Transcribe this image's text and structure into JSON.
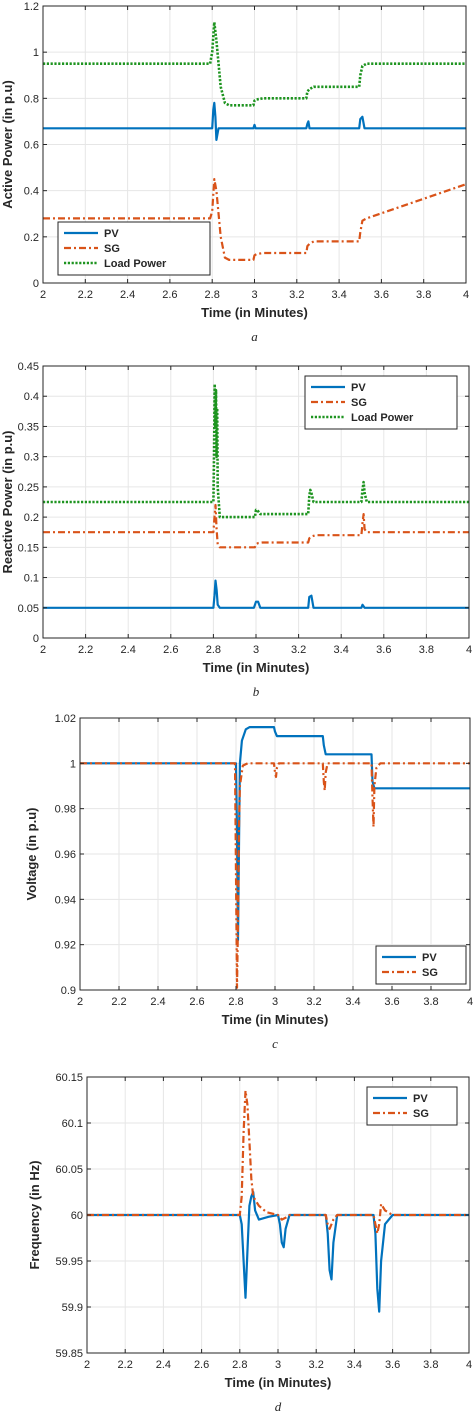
{
  "colors": {
    "pv": "#0072BD",
    "sg": "#D95319",
    "load": "#1E9420",
    "grid": "#e6e6e6",
    "axis": "#262626"
  },
  "chart_data": [
    {
      "type": "line",
      "panel_label": "a",
      "xlabel": "Time (in Minutes)",
      "ylabel": "Active Power (in p.u)",
      "xlim": [
        2,
        4
      ],
      "ylim": [
        0,
        1.2
      ],
      "xticks": [
        2,
        2.2,
        2.4,
        2.6,
        2.8,
        3,
        3.2,
        3.4,
        3.6,
        3.8,
        4
      ],
      "xtick_labels": [
        "2",
        "2.2",
        "2.4",
        "2.6",
        "2.8",
        "3",
        "3.2",
        "3.4",
        "3.6",
        "3.8",
        "4"
      ],
      "yticks": [
        0,
        0.2,
        0.4,
        0.6,
        0.8,
        1,
        1.2
      ],
      "ytick_labels": [
        "0",
        "0.2",
        "0.4",
        "0.6",
        "0.8",
        "1",
        "1.2"
      ],
      "grid": true,
      "legend_position": "bottom-left",
      "series": [
        {
          "name": "PV",
          "style": "solid",
          "color": "#0072BD",
          "x": [
            2,
            2.8,
            2.805,
            2.81,
            2.815,
            2.82,
            2.83,
            2.86,
            2.995,
            3.0,
            3.005,
            3.245,
            3.25,
            3.255,
            3.26,
            3.495,
            3.5,
            3.51,
            3.52,
            4
          ],
          "y": [
            0.67,
            0.67,
            0.75,
            0.78,
            0.72,
            0.62,
            0.67,
            0.67,
            0.67,
            0.685,
            0.67,
            0.67,
            0.69,
            0.7,
            0.67,
            0.67,
            0.71,
            0.72,
            0.67,
            0.67
          ]
        },
        {
          "name": "SG",
          "style": "dashdot",
          "color": "#D95319",
          "x": [
            2,
            2.79,
            2.8,
            2.81,
            2.82,
            2.84,
            2.86,
            2.88,
            2.995,
            3.0,
            3.01,
            3.04,
            3.245,
            3.25,
            3.26,
            3.28,
            3.495,
            3.5,
            3.51,
            3.53,
            4
          ],
          "y": [
            0.28,
            0.28,
            0.31,
            0.45,
            0.4,
            0.2,
            0.11,
            0.1,
            0.1,
            0.12,
            0.125,
            0.13,
            0.13,
            0.16,
            0.17,
            0.18,
            0.18,
            0.22,
            0.27,
            0.28,
            0.428
          ]
        },
        {
          "name": "Load Power",
          "style": "dotted",
          "color": "#1E9420",
          "x": [
            2,
            2.79,
            2.8,
            2.81,
            2.82,
            2.84,
            2.86,
            2.88,
            2.995,
            3.0,
            3.01,
            3.04,
            3.245,
            3.25,
            3.26,
            3.28,
            3.495,
            3.5,
            3.51,
            3.53,
            4
          ],
          "y": [
            0.95,
            0.95,
            1.0,
            1.13,
            1.05,
            0.85,
            0.78,
            0.77,
            0.77,
            0.79,
            0.795,
            0.8,
            0.8,
            0.83,
            0.84,
            0.85,
            0.85,
            0.9,
            0.94,
            0.95,
            0.95
          ]
        }
      ]
    },
    {
      "type": "line",
      "panel_label": "b",
      "xlabel": "Time (in Minutes)",
      "ylabel": "Reactive Power (in p.u)",
      "xlim": [
        2,
        4
      ],
      "ylim": [
        0,
        0.45
      ],
      "xticks": [
        2,
        2.2,
        2.4,
        2.6,
        2.8,
        3,
        3.2,
        3.4,
        3.6,
        3.8,
        4
      ],
      "xtick_labels": [
        "2",
        "2.2",
        "2.4",
        "2.6",
        "2.8",
        "3",
        "3.2",
        "3.4",
        "3.6",
        "3.8",
        "4"
      ],
      "yticks": [
        0,
        0.05,
        0.1,
        0.15,
        0.2,
        0.25,
        0.3,
        0.35,
        0.4,
        0.45
      ],
      "ytick_labels": [
        "0",
        "0.05",
        "0.1",
        "0.15",
        "0.2",
        "0.25",
        "0.3",
        "0.35",
        "0.4",
        "0.45"
      ],
      "grid": true,
      "legend_position": "top-right",
      "series": [
        {
          "name": "PV",
          "style": "solid",
          "color": "#0072BD",
          "x": [
            2,
            2.8,
            2.805,
            2.81,
            2.815,
            2.82,
            2.83,
            2.99,
            3.0,
            3.01,
            3.02,
            3.245,
            3.25,
            3.26,
            3.27,
            3.495,
            3.5,
            3.51,
            4
          ],
          "y": [
            0.05,
            0.05,
            0.07,
            0.095,
            0.08,
            0.055,
            0.05,
            0.05,
            0.06,
            0.06,
            0.05,
            0.05,
            0.068,
            0.07,
            0.05,
            0.05,
            0.055,
            0.05,
            0.05
          ]
        },
        {
          "name": "SG",
          "style": "dashdot",
          "color": "#D95319",
          "x": [
            2,
            2.8,
            2.805,
            2.81,
            2.815,
            2.82,
            2.83,
            2.995,
            3.0,
            3.01,
            3.03,
            3.245,
            3.25,
            3.26,
            3.28,
            3.495,
            3.5,
            3.505,
            3.51,
            3.52,
            4
          ],
          "y": [
            0.175,
            0.175,
            0.2,
            0.22,
            0.18,
            0.155,
            0.15,
            0.15,
            0.155,
            0.157,
            0.158,
            0.158,
            0.165,
            0.168,
            0.17,
            0.17,
            0.19,
            0.205,
            0.18,
            0.175,
            0.175
          ]
        },
        {
          "name": "Load Power",
          "style": "dotted",
          "color": "#1E9420",
          "x": [
            2,
            2.8,
            2.803,
            2.806,
            2.809,
            2.812,
            2.815,
            2.818,
            2.82,
            2.83,
            2.995,
            3.0,
            3.01,
            3.02,
            3.245,
            3.25,
            3.255,
            3.26,
            3.27,
            3.495,
            3.5,
            3.505,
            3.51,
            3.52,
            4
          ],
          "y": [
            0.225,
            0.225,
            0.3,
            0.42,
            0.35,
            0.41,
            0.3,
            0.38,
            0.25,
            0.2,
            0.2,
            0.212,
            0.21,
            0.205,
            0.205,
            0.235,
            0.245,
            0.24,
            0.225,
            0.225,
            0.245,
            0.258,
            0.24,
            0.225,
            0.225
          ]
        }
      ]
    },
    {
      "type": "line",
      "panel_label": "c",
      "xlabel": "Time (in Minutes)",
      "ylabel": "Voltage (in p.u)",
      "xlim": [
        2,
        4
      ],
      "ylim": [
        0.9,
        1.02
      ],
      "xticks": [
        2,
        2.2,
        2.4,
        2.6,
        2.8,
        3,
        3.2,
        3.4,
        3.6,
        3.8,
        4
      ],
      "xtick_labels": [
        "2",
        "2.2",
        "2.4",
        "2.6",
        "2.8",
        "3",
        "3.2",
        "3.4",
        "3.6",
        "3.8",
        "4"
      ],
      "yticks": [
        0.9,
        0.92,
        0.94,
        0.96,
        0.98,
        1,
        1.02
      ],
      "ytick_labels": [
        "0.9",
        "0.92",
        "0.94",
        "0.96",
        "0.98",
        "1",
        "1.02"
      ],
      "grid": true,
      "legend_position": "bottom-right",
      "series": [
        {
          "name": "PV",
          "style": "solid",
          "color": "#0072BD",
          "x": [
            2,
            2.8,
            2.805,
            2.81,
            2.815,
            2.82,
            2.83,
            2.85,
            2.87,
            2.995,
            3.0,
            3.01,
            3.245,
            3.25,
            3.26,
            3.3,
            3.495,
            3.5,
            3.51,
            3.55,
            4
          ],
          "y": [
            1.0,
            1.0,
            0.97,
            0.922,
            0.96,
            1.0,
            1.01,
            1.015,
            1.016,
            1.016,
            1.014,
            1.012,
            1.012,
            1.008,
            1.004,
            1.004,
            1.004,
            0.992,
            0.989,
            0.989,
            0.989
          ]
        },
        {
          "name": "SG",
          "style": "dashdot",
          "color": "#D95319",
          "x": [
            2,
            2.795,
            2.8,
            2.805,
            2.81,
            2.815,
            2.82,
            2.835,
            2.86,
            2.995,
            3.0,
            3.005,
            3.01,
            3.02,
            3.245,
            3.25,
            3.255,
            3.26,
            3.27,
            3.495,
            3.5,
            3.505,
            3.51,
            3.52,
            3.54,
            4
          ],
          "y": [
            1.0,
            1.0,
            0.95,
            0.901,
            0.93,
            0.97,
            0.99,
            0.999,
            1.0,
            1.0,
            0.996,
            0.994,
            0.998,
            1.0,
            1.0,
            0.992,
            0.988,
            0.996,
            1.0,
            1.0,
            0.985,
            0.972,
            0.99,
            0.998,
            1.0,
            1.0
          ]
        }
      ]
    },
    {
      "type": "line",
      "panel_label": "d",
      "xlabel": "Time (in Minutes)",
      "ylabel": "Frequency (in Hz)",
      "xlim": [
        2,
        4
      ],
      "ylim": [
        59.85,
        60.15
      ],
      "xticks": [
        2,
        2.2,
        2.4,
        2.6,
        2.8,
        3,
        3.2,
        3.4,
        3.6,
        3.8,
        4
      ],
      "xtick_labels": [
        "2",
        "2.2",
        "2.4",
        "2.6",
        "2.8",
        "3",
        "3.2",
        "3.4",
        "3.6",
        "3.8",
        "4"
      ],
      "yticks": [
        59.85,
        59.9,
        59.95,
        60,
        60.05,
        60.1,
        60.15
      ],
      "ytick_labels": [
        "59.85",
        "59.9",
        "59.95",
        "60",
        "60.05",
        "60.1",
        "60.15"
      ],
      "grid": true,
      "legend_position": "top-right",
      "series": [
        {
          "name": "PV",
          "style": "solid",
          "color": "#0072BD",
          "x": [
            2,
            2.8,
            2.81,
            2.82,
            2.83,
            2.84,
            2.85,
            2.86,
            2.87,
            2.88,
            2.9,
            2.95,
            3.0,
            3.01,
            3.02,
            3.03,
            3.04,
            3.06,
            3.1,
            3.25,
            3.26,
            3.27,
            3.28,
            3.29,
            3.31,
            3.35,
            3.5,
            3.51,
            3.52,
            3.53,
            3.54,
            3.56,
            3.6,
            4
          ],
          "y": [
            60.0,
            60.0,
            59.99,
            59.95,
            59.91,
            59.96,
            60.01,
            60.02,
            60.025,
            60.005,
            59.995,
            59.998,
            60.0,
            59.99,
            59.97,
            59.965,
            59.985,
            60.0,
            60.0,
            60.0,
            59.98,
            59.94,
            59.93,
            59.97,
            60.0,
            60.0,
            60.0,
            59.98,
            59.92,
            59.895,
            59.95,
            59.99,
            60.0,
            60.0
          ]
        },
        {
          "name": "SG",
          "style": "dashdot",
          "color": "#D95319",
          "x": [
            2,
            2.8,
            2.81,
            2.82,
            2.83,
            2.84,
            2.85,
            2.86,
            2.87,
            2.9,
            2.94,
            3.0,
            3.02,
            3.04,
            3.06,
            3.25,
            3.26,
            3.27,
            3.29,
            3.31,
            3.5,
            3.51,
            3.52,
            3.53,
            3.54,
            3.56,
            3.6,
            4
          ],
          "y": [
            60.0,
            60.0,
            60.02,
            60.09,
            60.135,
            60.12,
            60.08,
            60.04,
            60.02,
            60.01,
            60.003,
            60.0,
            59.995,
            59.997,
            60.0,
            60.0,
            59.99,
            59.985,
            59.995,
            60.0,
            60.0,
            59.99,
            59.98,
            59.99,
            60.012,
            60.005,
            60.0,
            60.0
          ]
        }
      ]
    }
  ]
}
